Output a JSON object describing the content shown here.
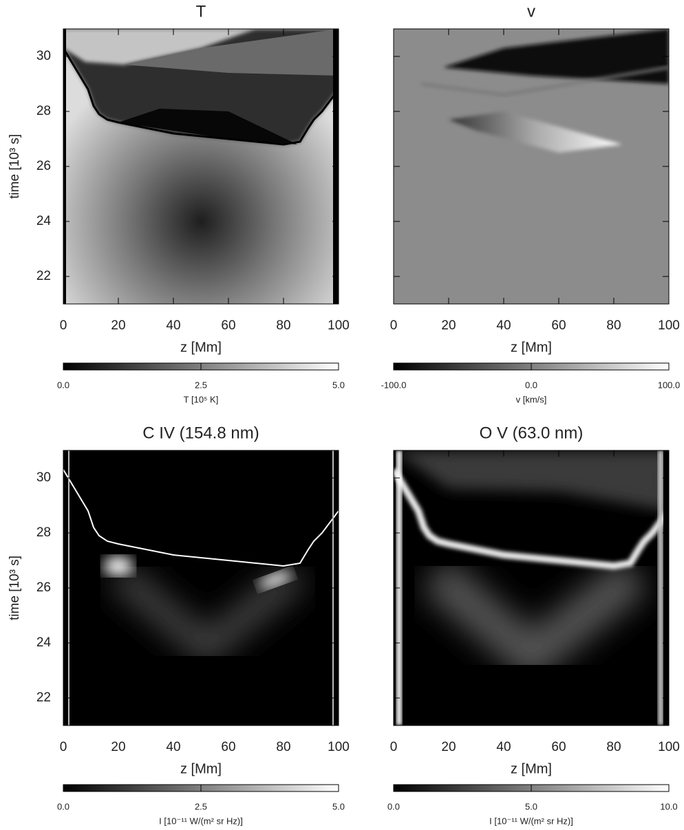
{
  "chart_data": [
    {
      "type": "heatmap",
      "title": "T",
      "xlabel": "z [Mm]",
      "ylabel": "time [10³ s]",
      "xlim": [
        0,
        100
      ],
      "xticks": [
        0,
        20,
        40,
        60,
        80,
        100
      ],
      "ylim": [
        21,
        31
      ],
      "yticks": [
        22,
        24,
        26,
        28,
        30
      ],
      "colorbar": {
        "label": "T [10⁵ K]",
        "clim": [
          0,
          5
        ],
        "ticks": [
          {
            "value": 0,
            "label": "0.0"
          },
          {
            "value": 2.5,
            "label": "2.5"
          },
          {
            "value": 5,
            "label": "5.0"
          }
        ]
      }
    },
    {
      "type": "heatmap",
      "title": "v",
      "xlabel": "z [Mm]",
      "xlim": [
        0,
        100
      ],
      "xticks": [
        0,
        20,
        40,
        60,
        80,
        100
      ],
      "ylim": [
        21,
        31
      ],
      "yticks": [
        22,
        24,
        26,
        28,
        30
      ],
      "colorbar": {
        "label": "v [km/s]",
        "clim": [
          -100,
          100
        ],
        "ticks": [
          {
            "value": -100,
            "label": "-100.0"
          },
          {
            "value": 0,
            "label": "0.0"
          },
          {
            "value": 100,
            "label": "100.0"
          }
        ]
      }
    },
    {
      "type": "heatmap",
      "title": "C IV (154.8 nm)",
      "xlabel": "z [Mm]",
      "ylabel": "time [10³ s]",
      "xlim": [
        0,
        100
      ],
      "xticks": [
        0,
        20,
        40,
        60,
        80,
        100
      ],
      "ylim": [
        21,
        31
      ],
      "yticks": [
        22,
        24,
        26,
        28,
        30
      ],
      "colorbar": {
        "label": "I [10⁻¹¹ W/(m² sr Hz)]",
        "clim": [
          0,
          5
        ],
        "ticks": [
          {
            "value": 0,
            "label": "0.0"
          },
          {
            "value": 2.5,
            "label": "2.5"
          },
          {
            "value": 5,
            "label": "5.0"
          }
        ]
      }
    },
    {
      "type": "heatmap",
      "title": "O V (63.0 nm)",
      "xlabel": "z [Mm]",
      "xlim": [
        0,
        100
      ],
      "xticks": [
        0,
        20,
        40,
        60,
        80,
        100
      ],
      "ylim": [
        21,
        31
      ],
      "yticks": [
        22,
        24,
        26,
        28,
        30
      ],
      "colorbar": {
        "label": "I [10⁻¹¹ W/(m² sr Hz)]",
        "clim": [
          0,
          10
        ],
        "ticks": [
          {
            "value": 0,
            "label": "0.0"
          },
          {
            "value": 5,
            "label": "5.0"
          },
          {
            "value": 10,
            "label": "10.0"
          }
        ]
      }
    }
  ]
}
